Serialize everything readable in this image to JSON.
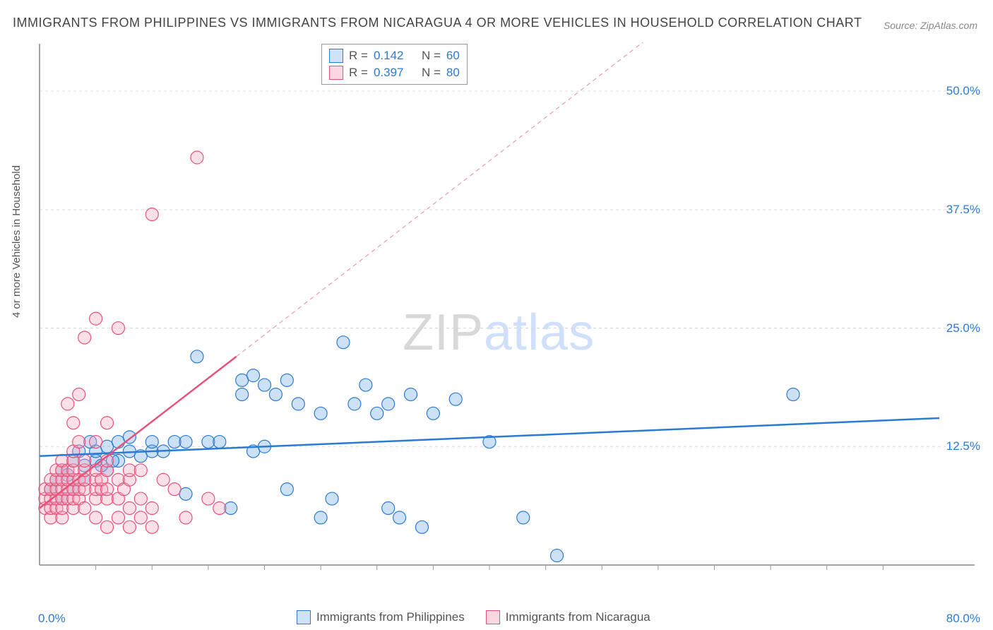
{
  "title": "IMMIGRANTS FROM PHILIPPINES VS IMMIGRANTS FROM NICARAGUA 4 OR MORE VEHICLES IN HOUSEHOLD CORRELATION CHART",
  "source": "Source: ZipAtlas.com",
  "watermark": {
    "zip": "ZIP",
    "atlas": "atlas"
  },
  "y_axis_label": "4 or more Vehicles in Household",
  "chart": {
    "type": "scatter",
    "background_color": "#ffffff",
    "grid_color": "#d9d9d9",
    "axis_color": "#888888",
    "tick_color": "#999999",
    "xlim": [
      0,
      80
    ],
    "ylim": [
      0,
      55
    ],
    "x_origin_label": "0.0%",
    "x_max_label": "80.0%",
    "y_ticks": [
      {
        "value": 12.5,
        "label": "12.5%"
      },
      {
        "value": 25.0,
        "label": "25.0%"
      },
      {
        "value": 37.5,
        "label": "37.5%"
      },
      {
        "value": 50.0,
        "label": "50.0%"
      }
    ],
    "x_minor_ticks": [
      5,
      10,
      15,
      20,
      25,
      30,
      35,
      40,
      45,
      50,
      55,
      60,
      65,
      70,
      75
    ],
    "marker_radius": 9,
    "marker_fill_opacity": 0.35,
    "marker_stroke_width": 1.2,
    "series": [
      {
        "name": "Immigrants from Philippines",
        "R": "0.142",
        "N": "60",
        "color": "#6fa8e6",
        "stroke": "#2b7bd4",
        "trend": {
          "x1": 0,
          "y1": 11.5,
          "x2": 80,
          "y2": 15.5,
          "width": 2.5,
          "dash": "none",
          "extend_dash": false
        },
        "points": [
          [
            1,
            8
          ],
          [
            1.5,
            9
          ],
          [
            2,
            7
          ],
          [
            2,
            10
          ],
          [
            2.5,
            9.5
          ],
          [
            3,
            8
          ],
          [
            3,
            11
          ],
          [
            3.5,
            12
          ],
          [
            4,
            9
          ],
          [
            4,
            10.5
          ],
          [
            4.5,
            13
          ],
          [
            5,
            11
          ],
          [
            5,
            12
          ],
          [
            6,
            12.5
          ],
          [
            6,
            10
          ],
          [
            7,
            11
          ],
          [
            7,
            13
          ],
          [
            8,
            12
          ],
          [
            8,
            13.5
          ],
          [
            9,
            11.5
          ],
          [
            10,
            12
          ],
          [
            10,
            13
          ],
          [
            11,
            12
          ],
          [
            12,
            13
          ],
          [
            13,
            7.5
          ],
          [
            13,
            13
          ],
          [
            14,
            22
          ],
          [
            15,
            13
          ],
          [
            16,
            13
          ],
          [
            17,
            6
          ],
          [
            18,
            18
          ],
          [
            18,
            19.5
          ],
          [
            19,
            20
          ],
          [
            19,
            12
          ],
          [
            20,
            12.5
          ],
          [
            20,
            19
          ],
          [
            21,
            18
          ],
          [
            22,
            8
          ],
          [
            22,
            19.5
          ],
          [
            23,
            17
          ],
          [
            25,
            5
          ],
          [
            25,
            16
          ],
          [
            26,
            7
          ],
          [
            27,
            23.5
          ],
          [
            28,
            17
          ],
          [
            29,
            19
          ],
          [
            30,
            16
          ],
          [
            31,
            6
          ],
          [
            31,
            17
          ],
          [
            32,
            5
          ],
          [
            33,
            18
          ],
          [
            34,
            4
          ],
          [
            35,
            16
          ],
          [
            37,
            17.5
          ],
          [
            40,
            13
          ],
          [
            43,
            5
          ],
          [
            46,
            1
          ],
          [
            67,
            18
          ],
          [
            5.5,
            10.5
          ],
          [
            6.5,
            11
          ]
        ]
      },
      {
        "name": "Immigrants from Nicaragua",
        "R": "0.397",
        "N": "80",
        "color": "#f4a7bc",
        "stroke": "#e6537a",
        "trend": {
          "x1": 0,
          "y1": 6,
          "x2": 17.5,
          "y2": 22,
          "width": 2.5,
          "dash": "none",
          "extend_dash": true,
          "ex2": 60,
          "ey2": 61
        },
        "points": [
          [
            0.5,
            6
          ],
          [
            0.5,
            7
          ],
          [
            0.5,
            8
          ],
          [
            1,
            5
          ],
          [
            1,
            6
          ],
          [
            1,
            7
          ],
          [
            1,
            8
          ],
          [
            1,
            9
          ],
          [
            1.5,
            6
          ],
          [
            1.5,
            7
          ],
          [
            1.5,
            8
          ],
          [
            1.5,
            9
          ],
          [
            1.5,
            10
          ],
          [
            2,
            5
          ],
          [
            2,
            6
          ],
          [
            2,
            7
          ],
          [
            2,
            8
          ],
          [
            2,
            9
          ],
          [
            2,
            10
          ],
          [
            2,
            11
          ],
          [
            2.5,
            7
          ],
          [
            2.5,
            8
          ],
          [
            2.5,
            9
          ],
          [
            2.5,
            10
          ],
          [
            2.5,
            17
          ],
          [
            3,
            6
          ],
          [
            3,
            7
          ],
          [
            3,
            8
          ],
          [
            3,
            9
          ],
          [
            3,
            10
          ],
          [
            3,
            11
          ],
          [
            3,
            12
          ],
          [
            3,
            15
          ],
          [
            3.5,
            7
          ],
          [
            3.5,
            8
          ],
          [
            3.5,
            9
          ],
          [
            3.5,
            13
          ],
          [
            3.5,
            18
          ],
          [
            4,
            6
          ],
          [
            4,
            8
          ],
          [
            4,
            9
          ],
          [
            4,
            10
          ],
          [
            4,
            11
          ],
          [
            4,
            24
          ],
          [
            5,
            5
          ],
          [
            5,
            7
          ],
          [
            5,
            8
          ],
          [
            5,
            9
          ],
          [
            5,
            10
          ],
          [
            5,
            13
          ],
          [
            5,
            26
          ],
          [
            5.5,
            8
          ],
          [
            5.5,
            9
          ],
          [
            6,
            4
          ],
          [
            6,
            7
          ],
          [
            6,
            8
          ],
          [
            6,
            10
          ],
          [
            6,
            11
          ],
          [
            6,
            15
          ],
          [
            7,
            5
          ],
          [
            7,
            7
          ],
          [
            7,
            9
          ],
          [
            7,
            25
          ],
          [
            7.5,
            8
          ],
          [
            8,
            4
          ],
          [
            8,
            6
          ],
          [
            8,
            9
          ],
          [
            8,
            10
          ],
          [
            9,
            5
          ],
          [
            9,
            7
          ],
          [
            9,
            10
          ],
          [
            10,
            4
          ],
          [
            10,
            6
          ],
          [
            10,
            37
          ],
          [
            11,
            9
          ],
          [
            12,
            8
          ],
          [
            13,
            5
          ],
          [
            14,
            43
          ],
          [
            15,
            7
          ],
          [
            16,
            6
          ]
        ]
      }
    ],
    "legend_top": {
      "R_key": "R =",
      "N_key": "N ="
    },
    "legend_bottom": [
      {
        "label": "Immigrants from Philippines",
        "fill": "#cfe2f7",
        "stroke": "#2b7bd4"
      },
      {
        "label": "Immigrants from Nicaragua",
        "fill": "#fad7e1",
        "stroke": "#e6537a"
      }
    ]
  }
}
